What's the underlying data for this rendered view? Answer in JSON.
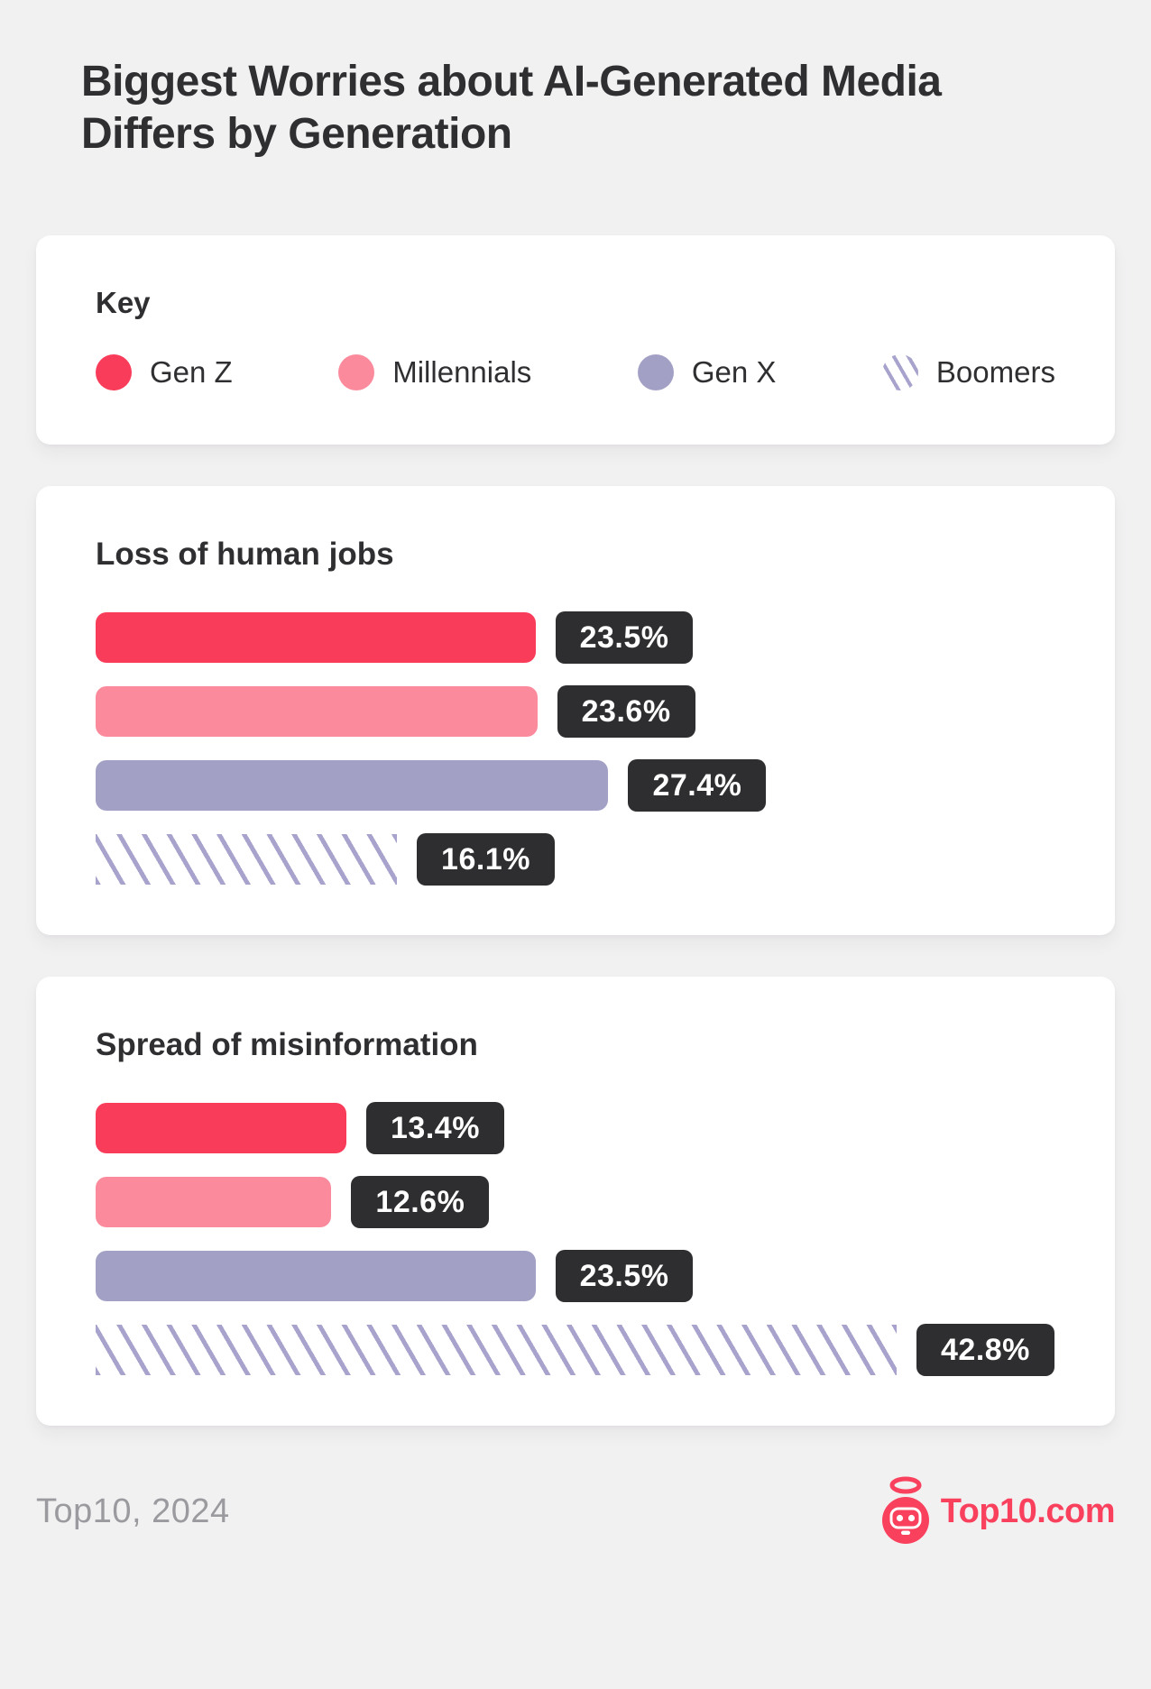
{
  "page": {
    "title": "Biggest Worries about AI-Generated Media Differs by Generation",
    "footer_source": "Top10, 2024",
    "logo_text": "Top10.com"
  },
  "key": {
    "label": "Key",
    "legend": [
      {
        "label": "Gen Z",
        "type": "solid",
        "color": "#f93c59"
      },
      {
        "label": "Millennials",
        "type": "solid",
        "color": "#fb8b9c"
      },
      {
        "label": "Gen X",
        "type": "solid",
        "color": "#a3a0c6"
      },
      {
        "label": "Boomers",
        "type": "hatch",
        "color": "#a7a3cd"
      }
    ]
  },
  "chart_data": [
    {
      "type": "bar",
      "title": "Loss of human jobs",
      "categories": [
        "Gen Z",
        "Millennials",
        "Gen X",
        "Boomers"
      ],
      "values": [
        23.5,
        23.6,
        27.4,
        16.1
      ],
      "labels": [
        "23.5%",
        "23.6%",
        "27.4%",
        "16.1%"
      ],
      "unit": "%",
      "orientation": "horizontal",
      "value_labels": "badge-right",
      "grid": false,
      "axes_visible": false
    },
    {
      "type": "bar",
      "title": "Spread of misinformation",
      "categories": [
        "Gen Z",
        "Millennials",
        "Gen X",
        "Boomers"
      ],
      "values": [
        13.4,
        12.6,
        23.5,
        42.8
      ],
      "labels": [
        "13.4%",
        "12.6%",
        "23.5%",
        "42.8%"
      ],
      "unit": "%",
      "orientation": "horizontal",
      "value_labels": "badge-right",
      "grid": false,
      "axes_visible": false
    }
  ],
  "colors": {
    "page_background": "#f2f1f2",
    "card_background": "#ffffff",
    "text_dark": "#2f2e31",
    "badge_background": "#2e2d2f",
    "badge_text": "#ffffff",
    "footer_text": "#9b9a9e",
    "brand": "#f9415e"
  }
}
